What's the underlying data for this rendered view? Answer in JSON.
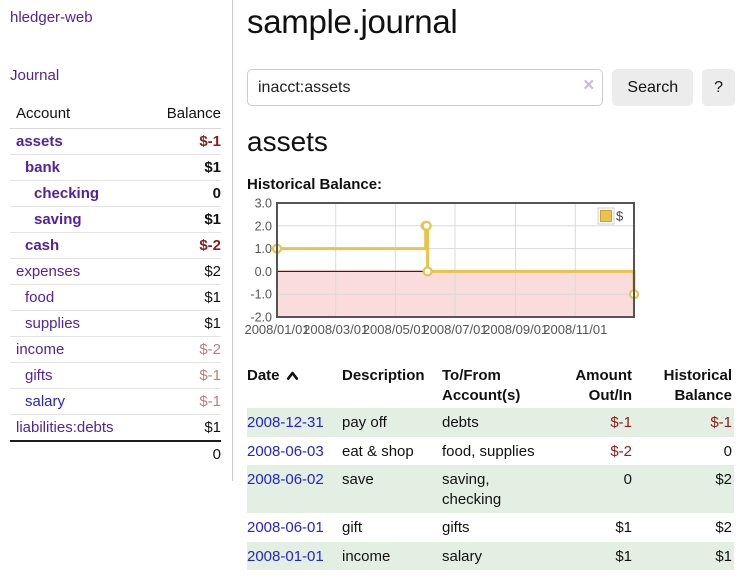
{
  "app": {
    "title": "hledger-web"
  },
  "sidebar": {
    "journal_link": "Journal",
    "accounts_table": {
      "headers": [
        "Account",
        "Balance"
      ],
      "rows": [
        {
          "name": "assets",
          "balance": "$-1",
          "depth": 0,
          "bold": true,
          "negative": "strong"
        },
        {
          "name": "bank",
          "balance": "$1",
          "depth": 1,
          "bold": true,
          "negative": "none"
        },
        {
          "name": "checking",
          "balance": "0",
          "depth": 2,
          "bold": true,
          "negative": "none"
        },
        {
          "name": "saving",
          "balance": "$1",
          "depth": 2,
          "bold": true,
          "negative": "none"
        },
        {
          "name": "cash",
          "balance": "$-2",
          "depth": 1,
          "bold": true,
          "negative": "strong"
        },
        {
          "name": "expenses",
          "balance": "$2",
          "depth": 0,
          "bold": false,
          "negative": "none"
        },
        {
          "name": "food",
          "balance": "$1",
          "depth": 1,
          "bold": false,
          "negative": "none"
        },
        {
          "name": "supplies",
          "balance": "$1",
          "depth": 1,
          "bold": false,
          "negative": "none"
        },
        {
          "name": "income",
          "balance": "$-2",
          "depth": 0,
          "bold": false,
          "negative": "soft"
        },
        {
          "name": "gifts",
          "balance": "$-1",
          "depth": 1,
          "bold": false,
          "negative": "soft"
        },
        {
          "name": "salary",
          "balance": "$-1",
          "depth": 1,
          "bold": false,
          "negative": "soft",
          "link_style": "unvisited"
        },
        {
          "name": "liabilities:debts",
          "balance": "$1",
          "depth": 0,
          "bold": false,
          "negative": "none"
        }
      ],
      "total": "0"
    }
  },
  "header": {
    "title": "sample.journal"
  },
  "search": {
    "value": "inacct:assets",
    "clear_icon": "×",
    "button_label": "Search",
    "help_label": "?"
  },
  "account_page": {
    "title": "assets",
    "chart_label": "Historical Balance:"
  },
  "chart_data": {
    "type": "line",
    "step": true,
    "title": "Historical Balance:",
    "series": [
      {
        "name": "$",
        "color": "#e8c34d",
        "points": [
          {
            "date": "2008-01-01",
            "value": 1
          },
          {
            "date": "2008-06-01",
            "value": 2
          },
          {
            "date": "2008-06-02",
            "value": 2
          },
          {
            "date": "2008-06-03",
            "value": 0
          },
          {
            "date": "2008-12-31",
            "value": -1
          }
        ]
      }
    ],
    "x_range": [
      "2008-01-01",
      "2008-12-31"
    ],
    "ylim": [
      -2,
      3
    ],
    "y_ticks": [
      {
        "value": 3,
        "label": "3.0"
      },
      {
        "value": 2,
        "label": "2.0"
      },
      {
        "value": 1,
        "label": "1.0"
      },
      {
        "value": 0,
        "label": "0.0"
      },
      {
        "value": -1,
        "label": "-1.0"
      },
      {
        "value": -2,
        "label": "-2.0"
      }
    ],
    "x_ticks": [
      {
        "date": "2008-01-01",
        "label": "2008/01/01"
      },
      {
        "date": "2008-03-01",
        "label": "2008/03/01"
      },
      {
        "date": "2008-05-01",
        "label": "2008/05/01"
      },
      {
        "date": "2008-07-01",
        "label": "2008/07/01"
      },
      {
        "date": "2008-09-01",
        "label": "2008/09/01"
      },
      {
        "date": "2008-11-01",
        "label": "2008/11/01"
      }
    ],
    "grid": true,
    "legend_position": "top-right",
    "negative_region_color": "#fbdcdc",
    "zero_line_color": "#8b0000"
  },
  "register_table": {
    "headers": [
      "Date",
      "Description",
      "To/From Account(s)",
      "Amount Out/In",
      "Historical Balance"
    ],
    "sort": "date-ascending",
    "rows": [
      {
        "date": "2008-12-31",
        "description": "pay off",
        "accounts": "debts",
        "amount": "$-1",
        "amount_negative": true,
        "balance": "$-1",
        "balance_negative": true,
        "shaded": true
      },
      {
        "date": "2008-06-03",
        "description": "eat & shop",
        "accounts": "food, supplies",
        "amount": "$-2",
        "amount_negative": true,
        "balance": "0",
        "balance_negative": false,
        "shaded": false
      },
      {
        "date": "2008-06-02",
        "description": "save",
        "accounts": "saving, checking",
        "amount": "0",
        "amount_negative": false,
        "balance": "$2",
        "balance_negative": false,
        "shaded": true
      },
      {
        "date": "2008-06-01",
        "description": "gift",
        "accounts": "gifts",
        "amount": "$1",
        "amount_negative": false,
        "balance": "$2",
        "balance_negative": false,
        "shaded": false
      },
      {
        "date": "2008-01-01",
        "description": "income",
        "accounts": "salary",
        "amount": "$1",
        "amount_negative": false,
        "balance": "$1",
        "balance_negative": false,
        "shaded": true
      }
    ]
  }
}
